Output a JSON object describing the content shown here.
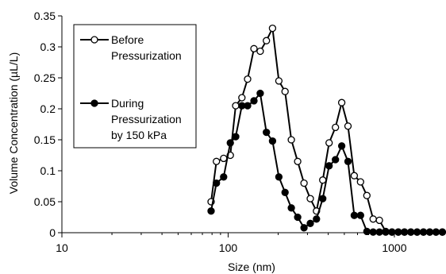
{
  "chart_data": {
    "type": "line",
    "title": "",
    "xlabel": "Size (nm)",
    "ylabel": "Volume Concentration (µL/L)",
    "xscale": "log",
    "xlim": [
      10,
      2000
    ],
    "ylim": [
      0,
      0.35
    ],
    "x_ticks": [
      10,
      100,
      1000
    ],
    "x_tick_labels": [
      "10",
      "100",
      "1000"
    ],
    "y_ticks": [
      0,
      0.05,
      0.1,
      0.15,
      0.2,
      0.25,
      0.3,
      0.35
    ],
    "y_tick_labels": [
      "0",
      "0.05",
      "0.1",
      "0.15",
      "0.2",
      "0.25",
      "0.3",
      "0.35"
    ],
    "grid": false,
    "legend_position": "top-left",
    "legend": [
      {
        "lines": [
          "Before",
          "Pressurization"
        ],
        "marker": "open-circle"
      },
      {
        "lines": [
          "During",
          "Pressurization",
          "by 150 kPa"
        ],
        "marker": "filled-circle"
      }
    ],
    "series": [
      {
        "name": "Before Pressurization",
        "marker": "open-circle",
        "color": "#000000",
        "x": [
          79,
          85,
          94,
          103,
          111,
          121,
          131,
          143,
          156,
          170,
          185,
          202,
          220,
          240,
          262,
          286,
          312,
          340,
          371,
          405,
          442,
          482,
          526,
          574,
          626,
          683,
          745,
          813,
          887,
          967,
          1056,
          1151,
          1256,
          1371,
          1496,
          1632,
          1780,
          1943
        ],
        "y": [
          0.05,
          0.115,
          0.12,
          0.125,
          0.205,
          0.218,
          0.248,
          0.297,
          0.293,
          0.31,
          0.33,
          0.245,
          0.228,
          0.15,
          0.115,
          0.08,
          0.055,
          0.035,
          0.085,
          0.145,
          0.17,
          0.21,
          0.172,
          0.092,
          0.082,
          0.06,
          0.022,
          0.02,
          0.002,
          0.001,
          0.001,
          0.001,
          0.001,
          0.001,
          0.001,
          0.001,
          0.001,
          0.001
        ]
      },
      {
        "name": "During Pressurization by 150 kPa",
        "marker": "filled-circle",
        "color": "#000000",
        "x": [
          79,
          85,
          94,
          103,
          111,
          121,
          131,
          143,
          156,
          170,
          185,
          202,
          220,
          240,
          262,
          286,
          312,
          340,
          371,
          405,
          442,
          482,
          526,
          574,
          626,
          683,
          745,
          813,
          887,
          967,
          1056,
          1151,
          1256,
          1371,
          1496,
          1632,
          1780,
          1943
        ],
        "y": [
          0.035,
          0.08,
          0.09,
          0.145,
          0.155,
          0.205,
          0.205,
          0.213,
          0.225,
          0.162,
          0.148,
          0.09,
          0.065,
          0.04,
          0.025,
          0.008,
          0.015,
          0.022,
          0.055,
          0.108,
          0.118,
          0.14,
          0.115,
          0.028,
          0.028,
          0.002,
          0.001,
          0.001,
          0.001,
          0.001,
          0.001,
          0.001,
          0.001,
          0.001,
          0.001,
          0.001,
          0.001,
          0.001
        ]
      }
    ]
  }
}
